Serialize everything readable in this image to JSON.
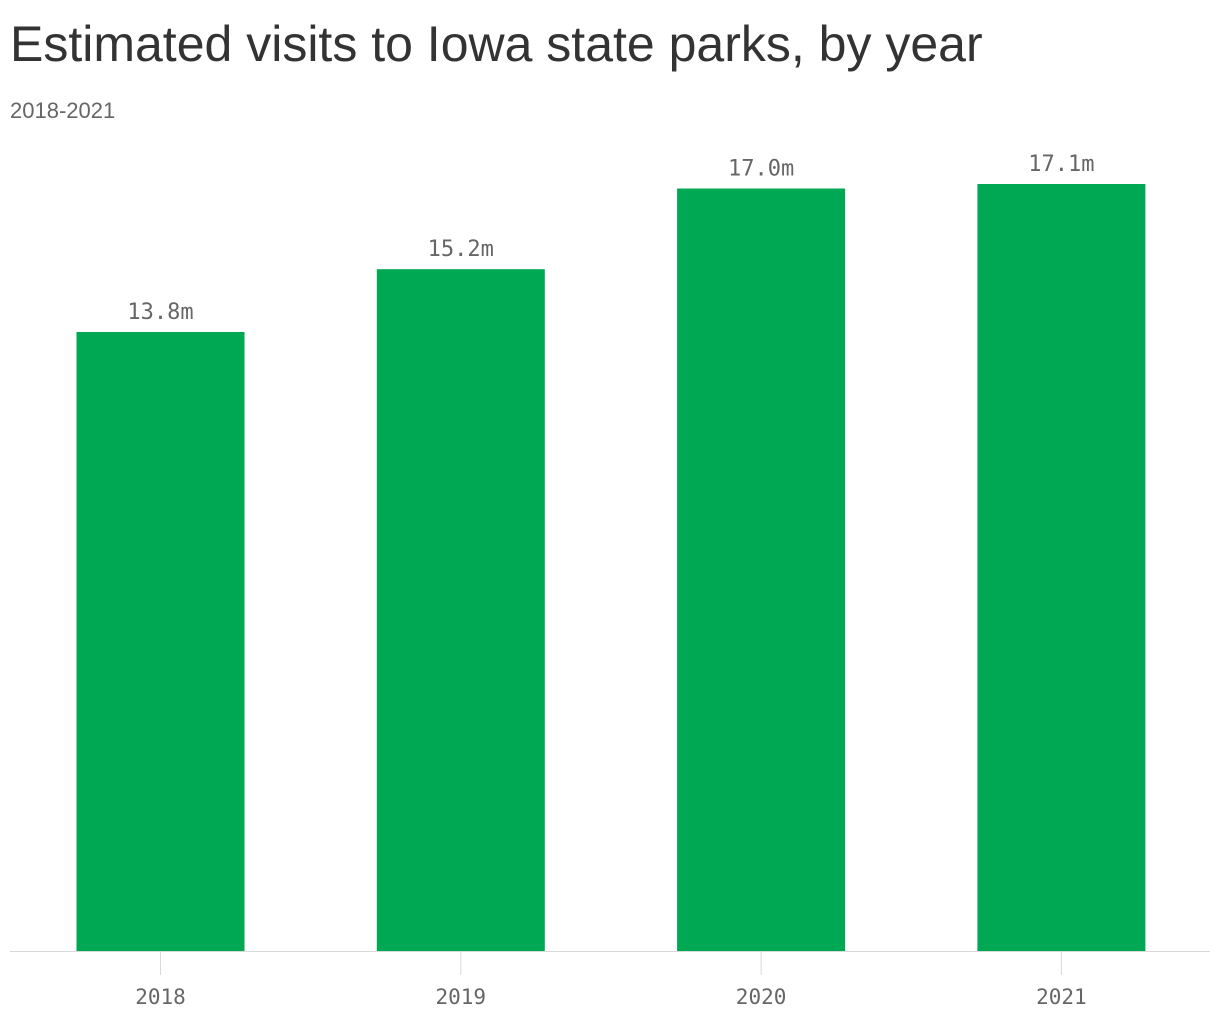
{
  "title": "Estimated visits to Iowa state parks, by year",
  "subtitle": "2018-2021",
  "chart_data": {
    "type": "bar",
    "title": "Estimated visits to Iowa state parks, by year",
    "subtitle": "2018-2021",
    "categories": [
      "2018",
      "2019",
      "2020",
      "2021"
    ],
    "values": [
      13.8,
      15.2,
      17.0,
      17.1
    ],
    "data_labels": [
      "13.8m",
      "15.2m",
      "17.0m",
      "17.1m"
    ],
    "xlabel": "",
    "ylabel": "",
    "ylim": [
      0,
      17.1
    ],
    "grid": false,
    "legend": "none",
    "colors": {
      "bar": "#00a854",
      "axis": "#d9d9d9",
      "text": "#333333",
      "label": "#666666"
    }
  }
}
